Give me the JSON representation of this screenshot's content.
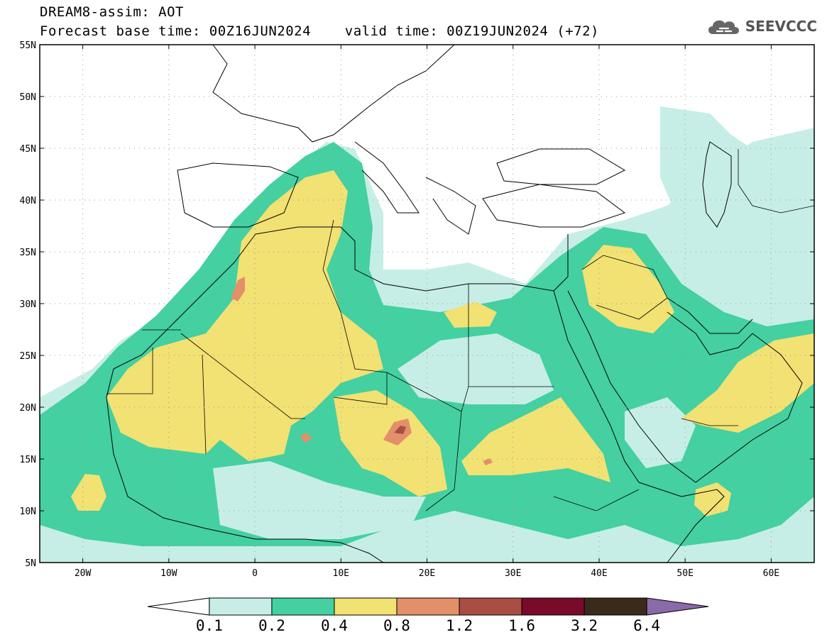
{
  "title": {
    "line1": "DREAM8-assim: AOT",
    "line2": "Forecast base time: 00Z16JUN2024    valid time: 00Z19JUN2024 (+72)"
  },
  "logo": {
    "text": "SEEVCCC",
    "icon": "cloud-icon"
  },
  "map": {
    "lon_range": [
      -25,
      65
    ],
    "lat_range": [
      5,
      55
    ],
    "lat_ticks": [
      "55N",
      "50N",
      "45N",
      "40N",
      "35N",
      "30N",
      "25N",
      "20N",
      "15N",
      "10N",
      "5N"
    ],
    "lon_ticks": [
      "20W",
      "10W",
      "0",
      "10E",
      "20E",
      "30E",
      "40E",
      "50E",
      "60E"
    ],
    "grid": "dotted"
  },
  "legend": {
    "levels": [
      "0.1",
      "0.2",
      "0.4",
      "0.8",
      "1.2",
      "1.6",
      "3.2",
      "6.4"
    ],
    "colors": [
      "#ffffff",
      "#c6eee6",
      "#44d0a0",
      "#f2e173",
      "#e2906a",
      "#a84e42",
      "#7a0a2a",
      "#3a2a1a",
      "#8a6aa8"
    ]
  }
}
